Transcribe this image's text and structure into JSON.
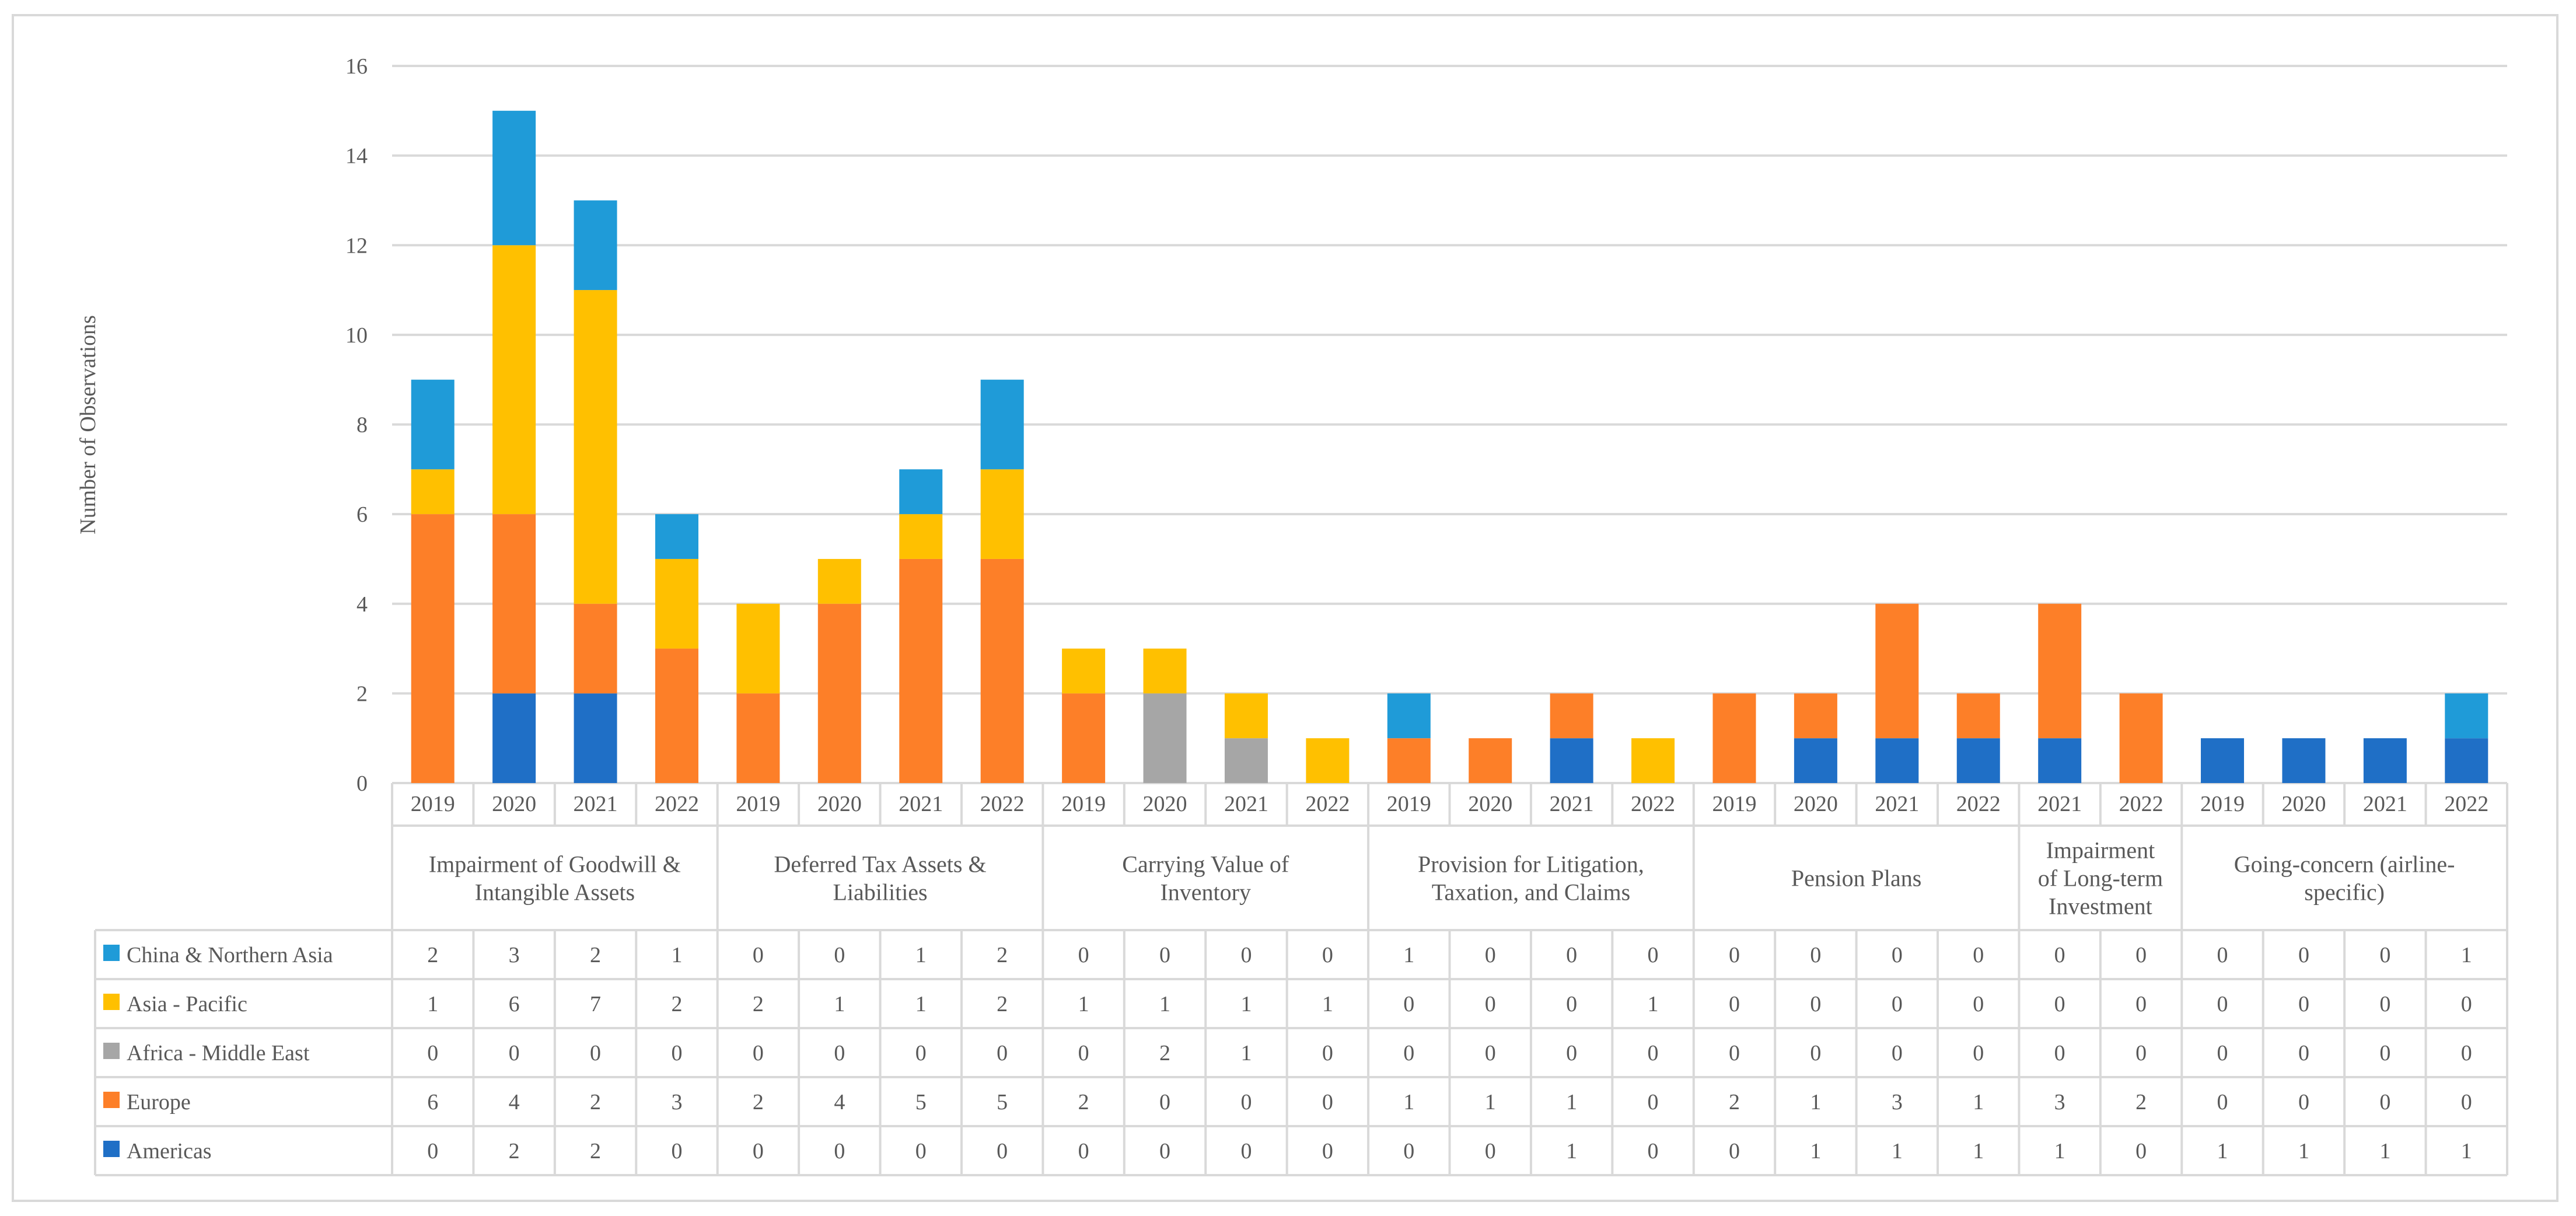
{
  "chart_data": {
    "type": "bar",
    "stacked": true,
    "ylabel": "Number of Observations",
    "ylim": [
      0,
      16
    ],
    "yticks": [
      0,
      2,
      4,
      6,
      8,
      10,
      12,
      14,
      16
    ],
    "grid": true,
    "legend_placement": "data-table-left",
    "groups": [
      {
        "label": "Impairment of Goodwill & Intangible Assets",
        "lines": [
          "Impairment of Goodwill &",
          "Intangible Assets"
        ],
        "years": [
          "2019",
          "2020",
          "2021",
          "2022"
        ]
      },
      {
        "label": "Deferred Tax Assets & Liabilities",
        "lines": [
          "Deferred Tax Assets &",
          "Liabilities"
        ],
        "years": [
          "2019",
          "2020",
          "2021",
          "2022"
        ]
      },
      {
        "label": "Carrying Value of Inventory",
        "lines": [
          "Carrying Value of",
          "Inventory"
        ],
        "years": [
          "2019",
          "2020",
          "2021",
          "2022"
        ]
      },
      {
        "label": "Provision for Litigation, Taxation, and Claims",
        "lines": [
          "Provision for Litigation,",
          "Taxation, and Claims"
        ],
        "years": [
          "2019",
          "2020",
          "2021",
          "2022"
        ]
      },
      {
        "label": "Pension Plans",
        "lines": [
          "Pension Plans"
        ],
        "years": [
          "2019",
          "2020",
          "2021",
          "2022"
        ]
      },
      {
        "label": "Impairment of Long-term Investment",
        "lines": [
          "Impairment",
          "of Long-term",
          "Investment"
        ],
        "years": [
          "2021",
          "2022"
        ]
      },
      {
        "label": "Going-concern (airline-specific)",
        "lines": [
          "Going-concern (airline-",
          "specific)"
        ],
        "years": [
          "2019",
          "2020",
          "2021",
          "2022"
        ]
      }
    ],
    "series": [
      {
        "name": "Americas",
        "color": "#1f6fc6",
        "values": [
          0,
          2,
          2,
          0,
          0,
          0,
          0,
          0,
          0,
          0,
          0,
          0,
          0,
          0,
          1,
          0,
          0,
          1,
          1,
          1,
          1,
          0,
          1,
          1,
          1,
          1
        ]
      },
      {
        "name": "Europe",
        "color": "#fd7f28",
        "values": [
          6,
          4,
          2,
          3,
          2,
          4,
          5,
          5,
          2,
          0,
          0,
          0,
          1,
          1,
          1,
          0,
          2,
          1,
          3,
          1,
          3,
          2,
          0,
          0,
          0,
          0
        ]
      },
      {
        "name": "Africa - Middle East",
        "color": "#a6a6a6",
        "values": [
          0,
          0,
          0,
          0,
          0,
          0,
          0,
          0,
          0,
          2,
          1,
          0,
          0,
          0,
          0,
          0,
          0,
          0,
          0,
          0,
          0,
          0,
          0,
          0,
          0,
          0
        ]
      },
      {
        "name": "Asia - Pacific",
        "color": "#ffc000",
        "values": [
          1,
          6,
          7,
          2,
          2,
          1,
          1,
          2,
          1,
          1,
          1,
          1,
          0,
          0,
          0,
          1,
          0,
          0,
          0,
          0,
          0,
          0,
          0,
          0,
          0,
          0
        ]
      },
      {
        "name": "China & Northern Asia",
        "color": "#1f9bd8",
        "values": [
          2,
          3,
          2,
          1,
          0,
          0,
          1,
          2,
          0,
          0,
          0,
          0,
          1,
          0,
          0,
          0,
          0,
          0,
          0,
          0,
          0,
          0,
          0,
          0,
          0,
          1
        ]
      }
    ],
    "table_order": [
      "China & Northern Asia",
      "Asia - Pacific",
      "Africa - Middle East",
      "Europe",
      "Americas"
    ]
  }
}
